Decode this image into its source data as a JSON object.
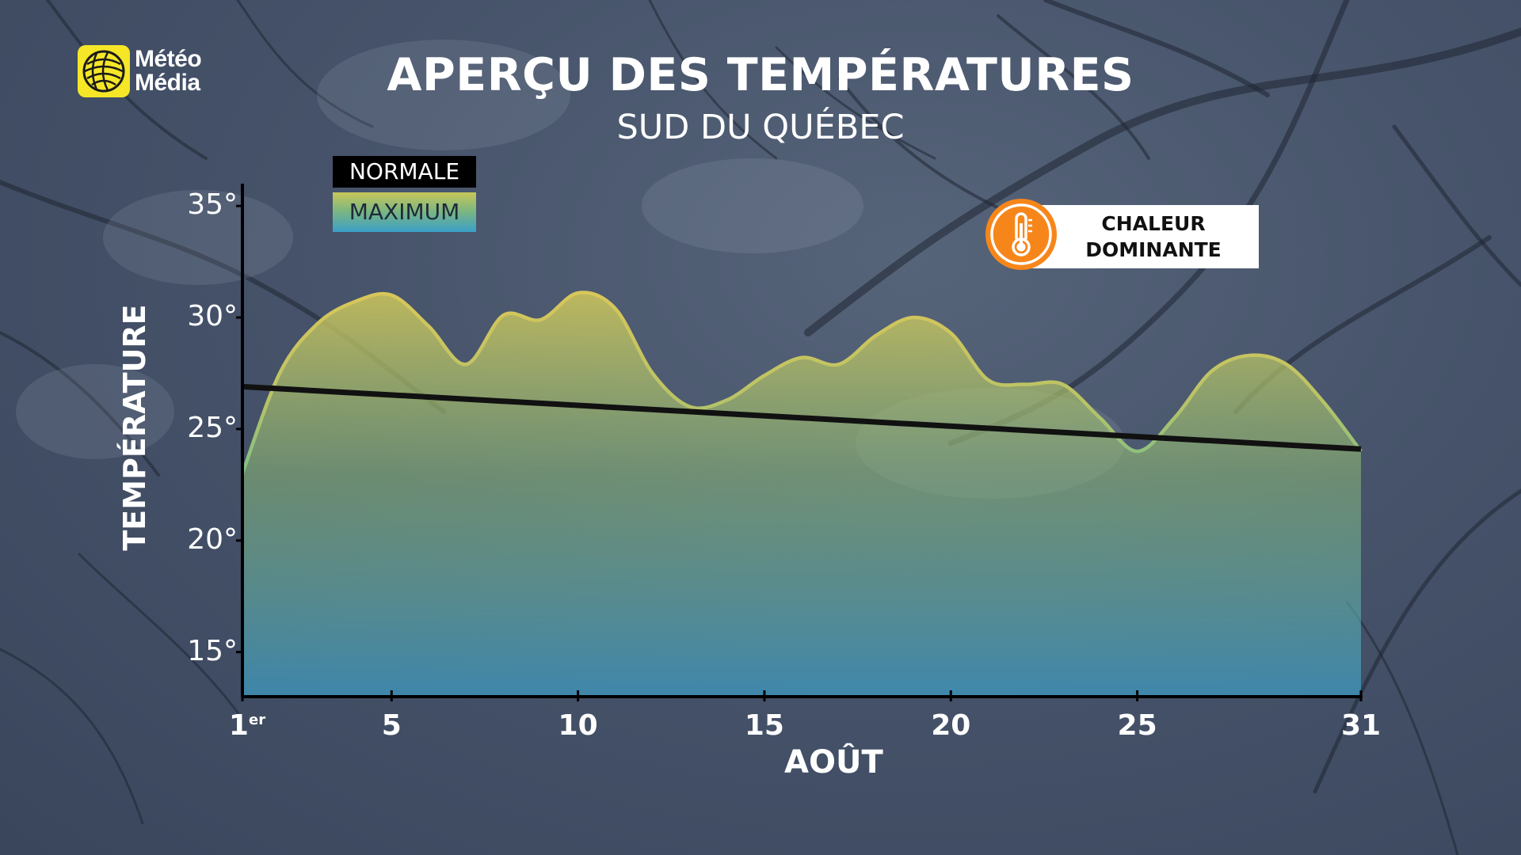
{
  "brand": {
    "logo_line1": "Météo",
    "logo_line2": "Média"
  },
  "title": "APERÇU DES TEMPÉRATURES",
  "subtitle": "SUD DU QUÉBEC",
  "badge": {
    "line1": "CHALEUR",
    "line2": "DOMINANTE",
    "icon": "thermometer-icon",
    "color": "#f7861a"
  },
  "colors": {
    "normal_line": "#111111",
    "max_gradient": [
      "#d1c85a",
      "#8dbb78",
      "#3d9ec9"
    ],
    "axis": "#000000"
  },
  "chart_data": {
    "type": "area",
    "xlabel": "AOÛT",
    "ylabel": "TEMPÉRATURE",
    "legend": [
      "NORMALE",
      "MAXIMUM"
    ],
    "legend_placement": "top-left",
    "xlim": [
      1,
      31
    ],
    "ylim": [
      13,
      36
    ],
    "x_ticks": [
      {
        "value": 1,
        "label": "1",
        "sup": "er"
      },
      {
        "value": 5,
        "label": "5",
        "sup": ""
      },
      {
        "value": 10,
        "label": "10",
        "sup": ""
      },
      {
        "value": 15,
        "label": "15",
        "sup": ""
      },
      {
        "value": 20,
        "label": "20",
        "sup": ""
      },
      {
        "value": 25,
        "label": "25",
        "sup": ""
      },
      {
        "value": 31,
        "label": "31",
        "sup": ""
      }
    ],
    "y_ticks": [
      {
        "value": 15,
        "label": "15°"
      },
      {
        "value": 20,
        "label": "20°"
      },
      {
        "value": 25,
        "label": "25°"
      },
      {
        "value": 30,
        "label": "30°"
      },
      {
        "value": 35,
        "label": "35°"
      }
    ],
    "grid": false,
    "series": [
      {
        "name": "NORMALE",
        "style": "line",
        "x": [
          1,
          31
        ],
        "y": [
          26.9,
          24.1
        ]
      },
      {
        "name": "MAXIMUM",
        "style": "area",
        "x": [
          1,
          2,
          3,
          4,
          5,
          6,
          7,
          8,
          9,
          10,
          11,
          12,
          13,
          14,
          15,
          16,
          17,
          18,
          19,
          20,
          21,
          22,
          23,
          24,
          25,
          26,
          27,
          28,
          29,
          30,
          31
        ],
        "y": [
          23,
          27.5,
          29.7,
          30.7,
          31,
          29.6,
          27.9,
          30.1,
          29.9,
          31.1,
          30.4,
          27.5,
          26.0,
          26.3,
          27.4,
          28.2,
          27.9,
          29.2,
          30.0,
          29.3,
          27.2,
          27.0,
          27.0,
          25.5,
          24.0,
          25.5,
          27.6,
          28.3,
          27.9,
          26.2,
          24.0
        ]
      }
    ]
  }
}
